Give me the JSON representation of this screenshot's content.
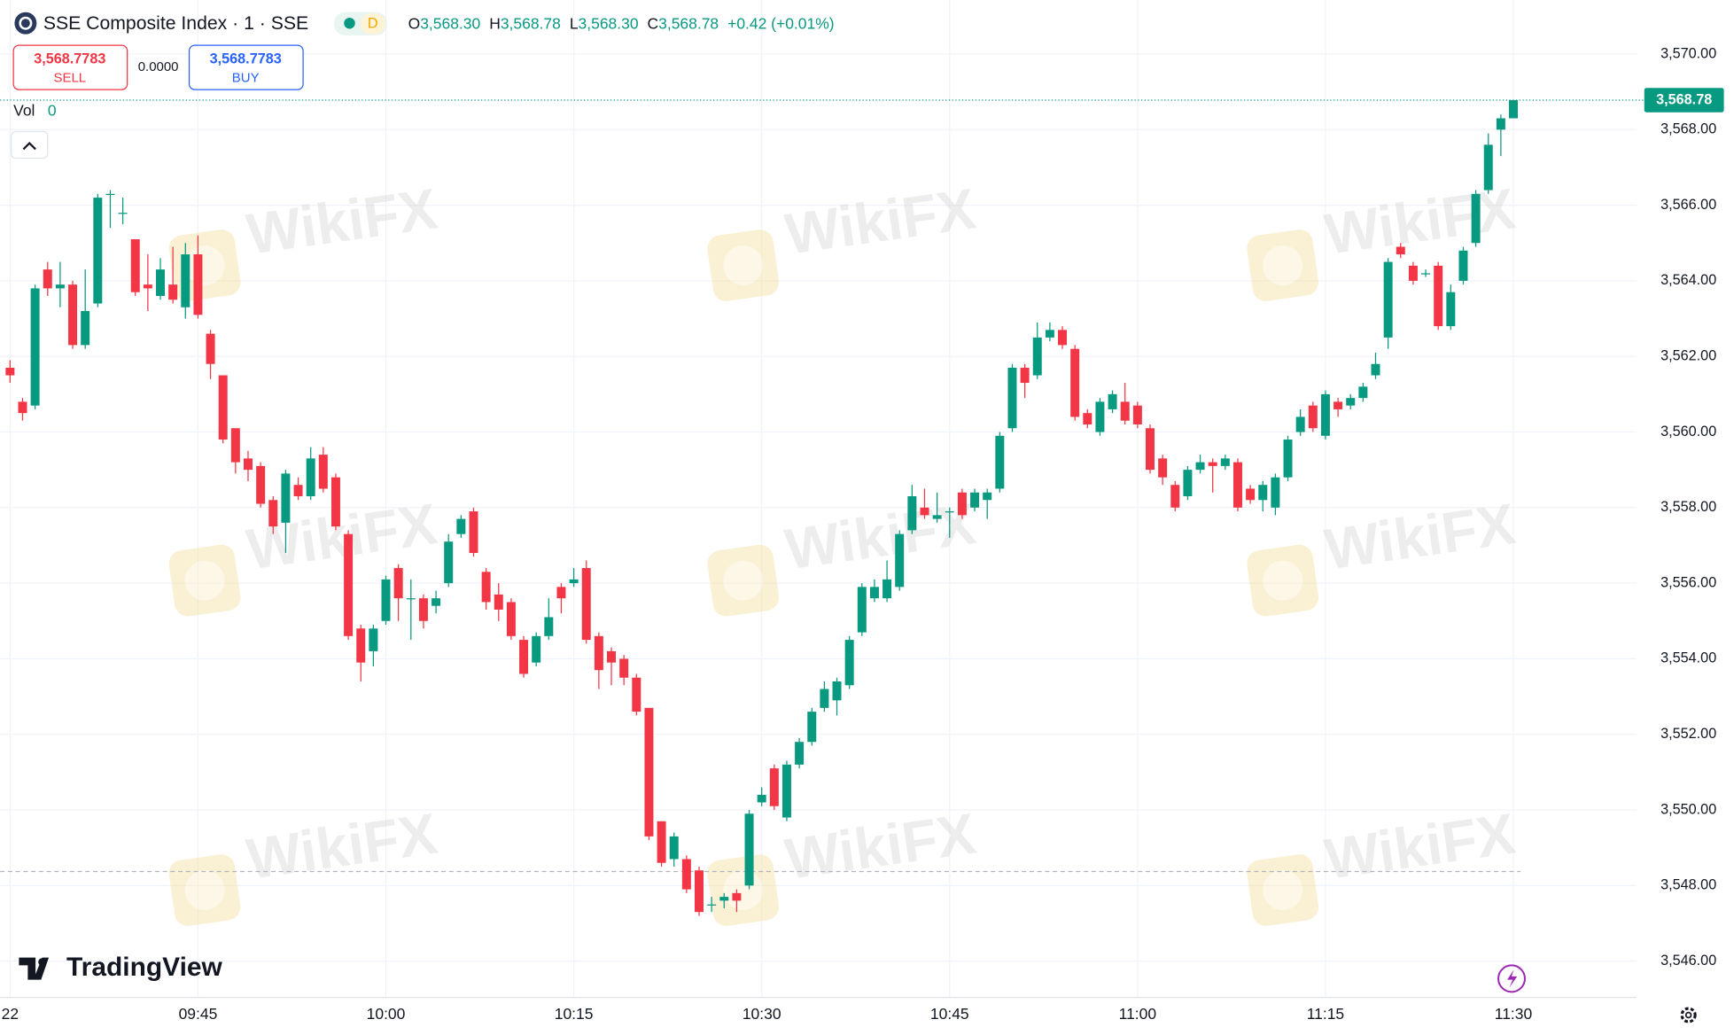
{
  "header": {
    "title": "SSE Composite Index · 1 · SSE",
    "badge": "D",
    "ohlc": [
      {
        "prefix": "O",
        "value": "3,568.30"
      },
      {
        "prefix": "H",
        "value": "3,568.78"
      },
      {
        "prefix": "L",
        "value": "3,568.30"
      },
      {
        "prefix": "C",
        "value": "3,568.78"
      }
    ],
    "change": "+0.42 (+0.01%)"
  },
  "trade": {
    "sell_price": "3,568.7783",
    "sell_label": "SELL",
    "spread": "0.0000",
    "buy_price": "3,568.7783",
    "buy_label": "BUY"
  },
  "volume": {
    "label": "Vol",
    "value": 0
  },
  "brand": "TradingView",
  "watermark": "WikiFX",
  "chart_data": {
    "type": "candlestick",
    "up_color": "#089981",
    "down_color": "#f23645",
    "grid": true,
    "open": [
      3561.7,
      3560.8,
      3560.7,
      3564.3,
      3563.8,
      3563.9,
      3562.3,
      3563.4,
      3566.3,
      3565.8,
      3565.1,
      3563.9,
      3563.6,
      3563.9,
      3563.3,
      3564.7,
      3562.6,
      3561.5,
      3560.1,
      3559.3,
      3559.1,
      3558.2,
      3557.6,
      3558.6,
      3558.3,
      3559.4,
      3558.8,
      3557.3,
      3554.8,
      3554.2,
      3555.0,
      3556.4,
      3555.6,
      3555.6,
      3555.4,
      3556.0,
      3557.3,
      3557.9,
      3556.3,
      3555.7,
      3555.5,
      3554.5,
      3553.9,
      3554.6,
      3555.9,
      3556.0,
      3556.4,
      3554.6,
      3554.2,
      3554.0,
      3553.5,
      3552.7,
      3549.7,
      3548.7,
      3548.7,
      3548.4,
      3547.5,
      3547.6,
      3547.8,
      3548.0,
      3550.2,
      3551.1,
      3549.8,
      3551.2,
      3551.8,
      3552.7,
      3552.9,
      3553.3,
      3554.7,
      3555.6,
      3555.6,
      3555.9,
      3557.4,
      3558.0,
      3557.7,
      3557.9,
      3558.4,
      3558.0,
      3558.2,
      3558.5,
      3560.1,
      3561.7,
      3561.5,
      3562.5,
      3562.7,
      3562.2,
      3560.5,
      3560.0,
      3560.6,
      3560.8,
      3560.7,
      3560.1,
      3559.3,
      3558.6,
      3558.3,
      3559.0,
      3559.2,
      3559.1,
      3559.2,
      3558.5,
      3558.2,
      3558.0,
      3558.8,
      3560.0,
      3560.7,
      3559.9,
      3560.8,
      3560.7,
      3560.9,
      3561.5,
      3562.5,
      3564.9,
      3564.4,
      3564.2,
      3564.4,
      3562.8,
      3564.0,
      3565.0,
      3566.4,
      3568.0,
      3568.3
    ],
    "high": [
      3561.9,
      3560.9,
      3563.9,
      3564.5,
      3564.5,
      3564.0,
      3564.3,
      3566.3,
      3566.4,
      3566.2,
      3565.1,
      3564.7,
      3564.6,
      3564.9,
      3565.0,
      3565.2,
      3562.7,
      3561.5,
      3560.1,
      3559.5,
      3559.2,
      3558.3,
      3559.0,
      3558.8,
      3559.6,
      3559.6,
      3558.9,
      3557.4,
      3554.9,
      3554.9,
      3556.2,
      3556.5,
      3556.1,
      3555.7,
      3555.8,
      3557.3,
      3557.8,
      3558.0,
      3556.4,
      3556.0,
      3555.6,
      3554.6,
      3554.7,
      3555.6,
      3556.0,
      3556.4,
      3556.6,
      3554.7,
      3554.3,
      3554.1,
      3553.6,
      3552.7,
      3549.7,
      3549.4,
      3548.8,
      3548.5,
      3547.7,
      3547.8,
      3547.9,
      3550.0,
      3550.6,
      3551.2,
      3551.3,
      3551.9,
      3552.7,
      3553.4,
      3553.5,
      3554.6,
      3556.0,
      3556.1,
      3556.6,
      3557.4,
      3558.6,
      3558.5,
      3558.4,
      3558.0,
      3558.5,
      3558.5,
      3558.5,
      3560.0,
      3561.8,
      3561.8,
      3562.9,
      3562.9,
      3562.8,
      3562.3,
      3560.6,
      3560.9,
      3561.1,
      3561.3,
      3560.8,
      3560.2,
      3559.4,
      3558.7,
      3559.1,
      3559.4,
      3559.3,
      3559.4,
      3559.3,
      3558.6,
      3558.7,
      3558.9,
      3559.9,
      3560.6,
      3560.8,
      3561.1,
      3560.9,
      3561.0,
      3561.3,
      3562.1,
      3564.6,
      3565.0,
      3564.5,
      3564.3,
      3564.5,
      3563.9,
      3564.9,
      3566.4,
      3567.9,
      3568.4,
      3568.78
    ],
    "low": [
      3561.3,
      3560.3,
      3560.6,
      3563.6,
      3563.3,
      3562.2,
      3562.2,
      3563.3,
      3565.4,
      3565.5,
      3563.6,
      3563.2,
      3563.5,
      3563.4,
      3563.0,
      3563.0,
      3561.4,
      3559.7,
      3558.9,
      3558.7,
      3558.0,
      3557.3,
      3556.8,
      3558.2,
      3558.2,
      3558.4,
      3557.4,
      3554.5,
      3553.4,
      3553.8,
      3554.9,
      3555.0,
      3554.5,
      3554.8,
      3555.2,
      3555.9,
      3557.2,
      3556.7,
      3555.3,
      3555.0,
      3554.5,
      3553.5,
      3553.8,
      3554.5,
      3555.2,
      3555.9,
      3554.4,
      3553.2,
      3553.3,
      3553.3,
      3552.5,
      3549.2,
      3548.5,
      3548.5,
      3547.8,
      3547.2,
      3547.3,
      3547.4,
      3547.3,
      3547.9,
      3550.1,
      3550.0,
      3549.7,
      3551.1,
      3551.7,
      3552.6,
      3552.5,
      3553.2,
      3554.6,
      3555.5,
      3555.5,
      3555.8,
      3557.3,
      3557.7,
      3557.6,
      3557.2,
      3557.7,
      3557.9,
      3557.7,
      3558.4,
      3560.0,
      3560.9,
      3561.4,
      3562.4,
      3562.2,
      3560.3,
      3560.1,
      3559.9,
      3560.5,
      3560.2,
      3560.1,
      3558.9,
      3558.6,
      3557.9,
      3558.2,
      3558.9,
      3558.4,
      3559.0,
      3557.9,
      3558.1,
      3557.9,
      3557.8,
      3558.7,
      3559.9,
      3560.0,
      3559.8,
      3560.4,
      3560.6,
      3560.8,
      3561.4,
      3562.2,
      3564.6,
      3563.9,
      3564.1,
      3562.7,
      3562.7,
      3563.9,
      3564.9,
      3566.3,
      3567.3,
      3568.3
    ],
    "close": [
      3561.5,
      3560.5,
      3563.8,
      3563.8,
      3563.9,
      3562.3,
      3563.2,
      3566.2,
      3566.3,
      3565.8,
      3563.7,
      3563.8,
      3564.3,
      3563.5,
      3564.7,
      3563.1,
      3561.8,
      3559.8,
      3559.2,
      3559.0,
      3558.1,
      3557.5,
      3558.9,
      3558.3,
      3559.3,
      3558.5,
      3557.5,
      3554.6,
      3553.9,
      3554.8,
      3556.1,
      3555.6,
      3555.6,
      3555.0,
      3555.6,
      3557.1,
      3557.7,
      3556.8,
      3555.5,
      3555.3,
      3554.6,
      3553.6,
      3554.6,
      3555.1,
      3555.6,
      3556.1,
      3554.5,
      3553.7,
      3553.9,
      3553.5,
      3552.6,
      3549.3,
      3548.6,
      3549.3,
      3547.9,
      3547.3,
      3547.5,
      3547.7,
      3547.6,
      3549.9,
      3550.4,
      3550.1,
      3551.2,
      3551.8,
      3552.6,
      3553.2,
      3553.4,
      3554.5,
      3555.9,
      3555.9,
      3556.1,
      3557.3,
      3558.3,
      3557.8,
      3557.8,
      3557.9,
      3557.8,
      3558.4,
      3558.4,
      3559.9,
      3561.7,
      3561.3,
      3562.5,
      3562.7,
      3562.3,
      3560.4,
      3560.2,
      3560.8,
      3561.0,
      3560.3,
      3560.2,
      3559.0,
      3558.8,
      3558.0,
      3559.0,
      3559.2,
      3559.1,
      3559.3,
      3558.0,
      3558.2,
      3558.6,
      3558.8,
      3559.8,
      3560.4,
      3560.1,
      3561.0,
      3560.6,
      3560.9,
      3561.2,
      3561.8,
      3564.5,
      3564.7,
      3564.0,
      3564.2,
      3562.8,
      3563.7,
      3564.8,
      3566.3,
      3567.6,
      3568.3,
      3568.78
    ],
    "ylim": [
      3545.04,
      3571.43
    ],
    "yticks": [
      {
        "value": 3546,
        "label": "3,546.00"
      },
      {
        "value": 3548,
        "label": "3,548.00"
      },
      {
        "value": 3550,
        "label": "3,550.00"
      },
      {
        "value": 3552,
        "label": "3,552.00"
      },
      {
        "value": 3554,
        "label": "3,554.00"
      },
      {
        "value": 3556,
        "label": "3,556.00"
      },
      {
        "value": 3558,
        "label": "3,558.00"
      },
      {
        "value": 3560,
        "label": "3,560.00"
      },
      {
        "value": 3562,
        "label": "3,562.00"
      },
      {
        "value": 3564,
        "label": "3,564.00"
      },
      {
        "value": 3566,
        "label": "3,566.00"
      },
      {
        "value": 3568,
        "label": "3,568.00"
      },
      {
        "value": 3570,
        "label": "3,570.00"
      }
    ],
    "xlim": [
      -0.79,
      129.83
    ],
    "xticks": [
      {
        "value": 0,
        "label": "22"
      },
      {
        "value": 15,
        "label": "09:45"
      },
      {
        "value": 30,
        "label": "10:00"
      },
      {
        "value": 45,
        "label": "10:15"
      },
      {
        "value": 60,
        "label": "10:30"
      },
      {
        "value": 75,
        "label": "10:45"
      },
      {
        "value": 90,
        "label": "11:00"
      },
      {
        "value": 105,
        "label": "11:15"
      },
      {
        "value": 120,
        "label": "11:30"
      }
    ],
    "last_price": {
      "value": 3568.78,
      "label": "3,568.78"
    },
    "reference_line": 3548.37
  }
}
